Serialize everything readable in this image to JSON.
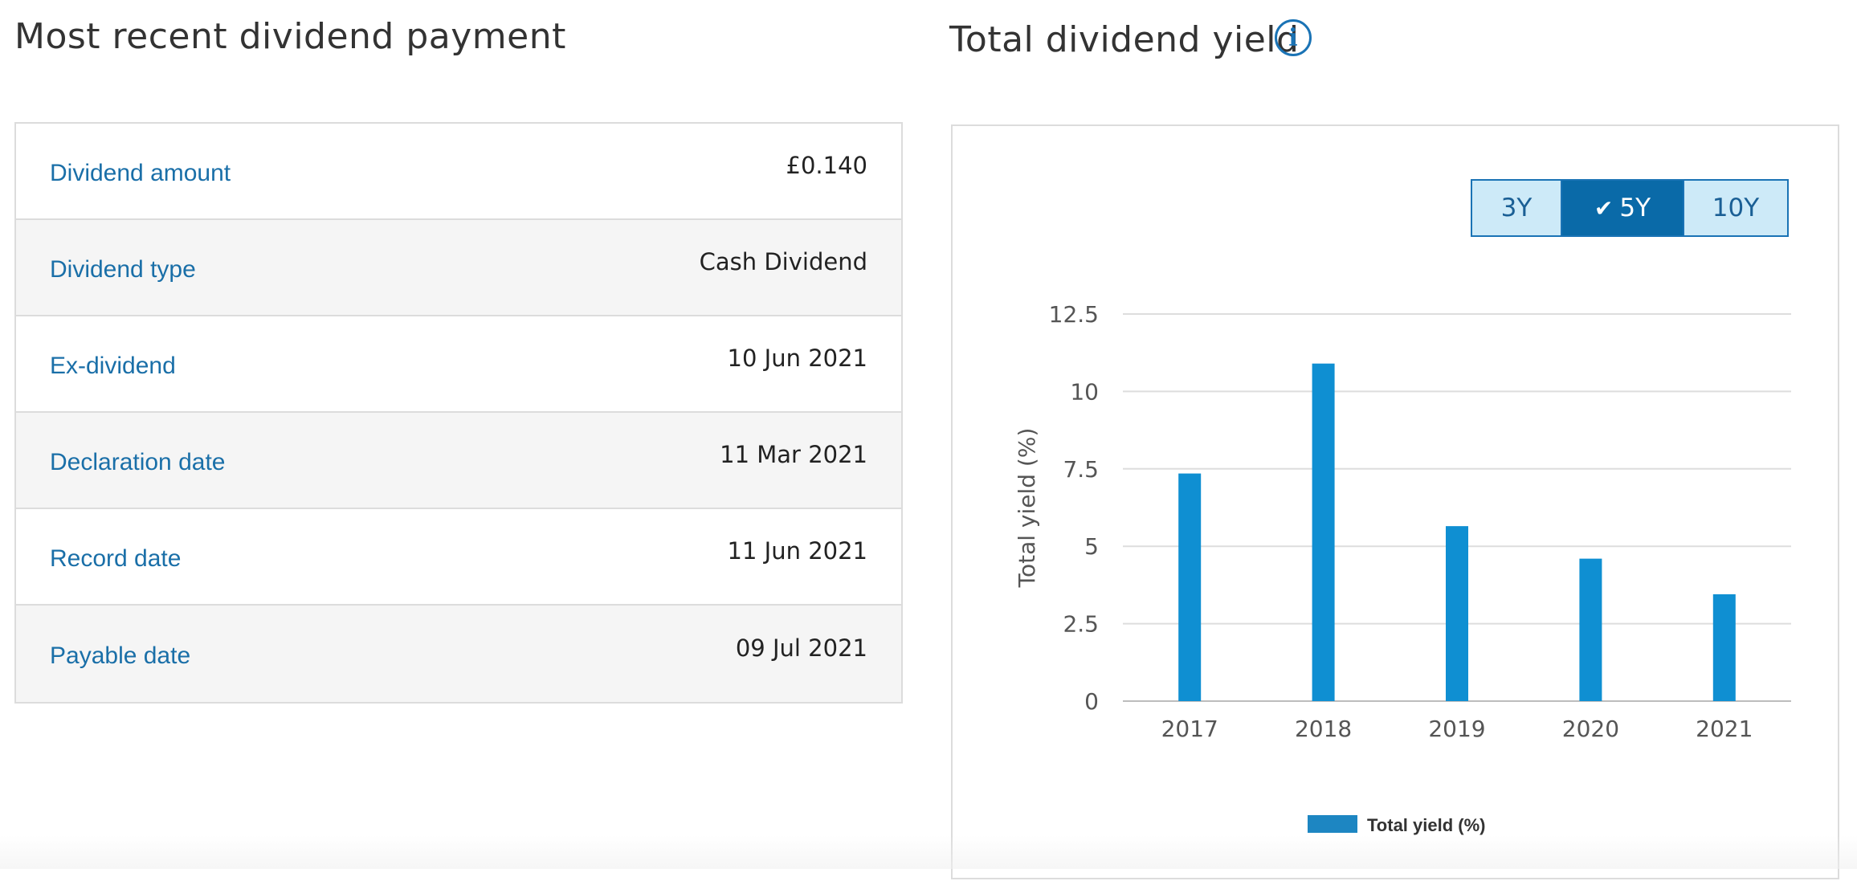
{
  "left_panel": {
    "title": "Most recent dividend payment",
    "rows": [
      {
        "label": "Dividend amount",
        "value": "£0.140"
      },
      {
        "label": "Dividend type",
        "value": "Cash Dividend"
      },
      {
        "label": "Ex-dividend",
        "value": "10 Jun 2021"
      },
      {
        "label": "Declaration date",
        "value": "11 Mar 2021"
      },
      {
        "label": "Record date",
        "value": "11 Jun 2021"
      },
      {
        "label": "Payable date",
        "value": "09 Jul 2021"
      }
    ]
  },
  "right_panel": {
    "title": "Total dividend yield",
    "info_icon": "info-icon",
    "range_buttons": [
      {
        "label": "3Y",
        "selected": false
      },
      {
        "label": "5Y",
        "selected": true,
        "icon": "checkmark-icon"
      },
      {
        "label": "10Y",
        "selected": false
      }
    ]
  },
  "colors": {
    "accent": "#1a73b5",
    "bar": "#0f8fd2",
    "label_blue": "#1a6fa8",
    "selected_button": "#0a6aa8",
    "button_bg": "#cdeaf8"
  },
  "chart_data": {
    "type": "bar",
    "categories": [
      "2017",
      "2018",
      "2019",
      "2020",
      "2021"
    ],
    "series": [
      {
        "name": "Total yield (%)",
        "values": [
          7.35,
          10.9,
          5.65,
          4.6,
          3.45
        ]
      }
    ],
    "ylabel": "Total yield (%)",
    "xlabel": "",
    "ylim": [
      0,
      12.5
    ],
    "yticks": [
      "0",
      "2.5",
      "5",
      "7.5",
      "10",
      "12.5"
    ],
    "ytick_values": [
      0,
      2.5,
      5,
      7.5,
      10,
      12.5
    ],
    "grid": true,
    "legend_position": "bottom-center"
  }
}
